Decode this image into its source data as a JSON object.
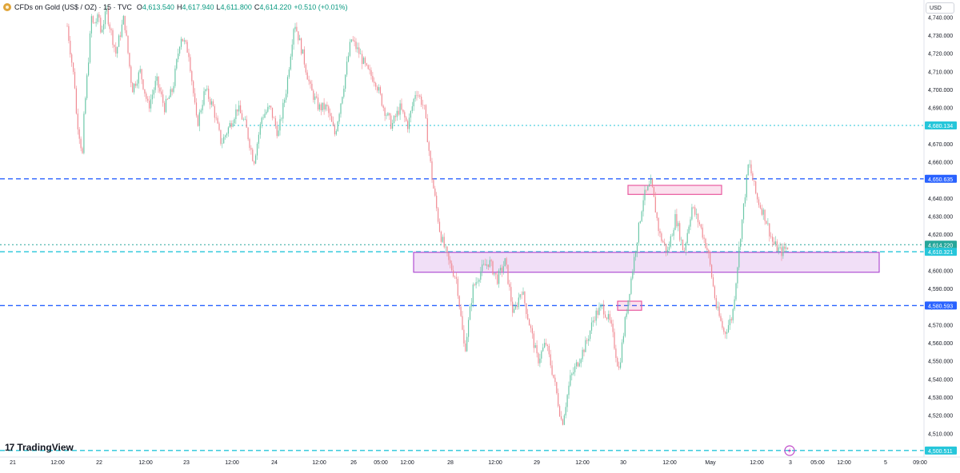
{
  "header": {
    "title": "CFDs on Gold (US$ / OZ) · 15 · TVC",
    "open_label": "O",
    "open": "4,613.540",
    "high_label": "H",
    "high": "4,617.940",
    "low_label": "L",
    "low": "4,611.800",
    "close_label": "C",
    "close": "4,614.220",
    "change": "+0.510 (+0.01%)"
  },
  "currency": "USD",
  "logo": {
    "text": "TradingView",
    "mark": "17"
  },
  "colors": {
    "up": "#089981",
    "down": "#f23645",
    "candle_up": "#6cc7a8",
    "candle_down": "#f08a93",
    "blue_line": "#2962ff",
    "cyan_line": "#26c6da",
    "price_tag": "#26a69a",
    "zone_purple": "#b04fd3",
    "zone_pink": "#e85aa0"
  },
  "chart_data": {
    "type": "candlestick",
    "symbol": "CFDs on Gold (US$ / OZ)",
    "interval": "15",
    "ylim": [
      4500,
      4745
    ],
    "price_ticks": [
      4740,
      4730,
      4720,
      4710,
      4700,
      4690,
      4680,
      4670,
      4660,
      4650,
      4640,
      4630,
      4620,
      4610,
      4600,
      4590,
      4580,
      4570,
      4560,
      4550,
      4540,
      4530,
      4520,
      4510
    ],
    "price_tick_labels": [
      "4,740.000",
      "4,730.000",
      "4,720.000",
      "4,710.000",
      "4,700.000",
      "4,690.000",
      "4,680.000",
      "4,670.000",
      "4,660.000",
      "4,650.000",
      "4,640.000",
      "4,630.000",
      "4,620.000",
      "4,610.000",
      "4,600.000",
      "4,590.000",
      "4,580.000",
      "4,570.000",
      "4,560.000",
      "4,550.000",
      "4,540.000",
      "4,530.000",
      "4,520.000",
      "4,510.000"
    ],
    "time_axis": [
      "21",
      "12:00",
      "22",
      "12:00",
      "23",
      "12:00",
      "24",
      "12:00",
      "26",
      "05:00",
      "12:00",
      "28",
      "12:00",
      "29",
      "12:00",
      "30",
      "12:00",
      "May",
      "12:00",
      "3",
      "05:00",
      "12:00",
      "5",
      "09:00"
    ],
    "price_path": [
      [
        4735,
        4700
      ],
      [
        4690,
        4660
      ],
      [
        4680,
        4740
      ],
      [
        4735,
        4740
      ],
      [
        4730,
        4745
      ],
      [
        4740,
        4720
      ],
      [
        4720,
        4740
      ],
      [
        4740,
        4700
      ],
      [
        4700,
        4710
      ],
      [
        4710,
        4690
      ],
      [
        4690,
        4705
      ],
      [
        4705,
        4690
      ],
      [
        4690,
        4700
      ],
      [
        4700,
        4730
      ],
      [
        4730,
        4720
      ],
      [
        4720,
        4680
      ],
      [
        4680,
        4700
      ],
      [
        4700,
        4690
      ],
      [
        4690,
        4670
      ],
      [
        4670,
        4680
      ],
      [
        4680,
        4690
      ],
      [
        4690,
        4680
      ],
      [
        4680,
        4660
      ],
      [
        4660,
        4685
      ],
      [
        4685,
        4690
      ],
      [
        4690,
        4675
      ],
      [
        4675,
        4700
      ],
      [
        4700,
        4738
      ],
      [
        4738,
        4720
      ],
      [
        4720,
        4700
      ],
      [
        4700,
        4690
      ],
      [
        4690,
        4690
      ],
      [
        4690,
        4675
      ],
      [
        4675,
        4700
      ],
      [
        4700,
        4728
      ],
      [
        4728,
        4720
      ],
      [
        4720,
        4710
      ],
      [
        4710,
        4705
      ],
      [
        4705,
        4690
      ],
      [
        4690,
        4680
      ],
      [
        4680,
        4690
      ],
      [
        4690,
        4680
      ],
      [
        4680,
        4700
      ],
      [
        4700,
        4690
      ],
      [
        4690,
        4650
      ],
      [
        4650,
        4620
      ],
      [
        4620,
        4605
      ],
      [
        4605,
        4595
      ],
      [
        4595,
        4555
      ],
      [
        4555,
        4590
      ],
      [
        4590,
        4600
      ],
      [
        4600,
        4605
      ],
      [
        4605,
        4595
      ],
      [
        4595,
        4605
      ],
      [
        4605,
        4575
      ],
      [
        4575,
        4590
      ],
      [
        4590,
        4570
      ],
      [
        4570,
        4550
      ],
      [
        4550,
        4560
      ],
      [
        4560,
        4540
      ],
      [
        4540,
        4515
      ],
      [
        4515,
        4540
      ],
      [
        4540,
        4550
      ],
      [
        4550,
        4560
      ],
      [
        4560,
        4575
      ],
      [
        4575,
        4580
      ],
      [
        4580,
        4570
      ],
      [
        4570,
        4545
      ],
      [
        4545,
        4580
      ],
      [
        4580,
        4610
      ],
      [
        4610,
        4640
      ],
      [
        4640,
        4648
      ],
      [
        4648,
        4620
      ],
      [
        4620,
        4610
      ],
      [
        4610,
        4630
      ],
      [
        4630,
        4610
      ],
      [
        4610,
        4635
      ],
      [
        4635,
        4625
      ],
      [
        4625,
        4610
      ],
      [
        4610,
        4580
      ],
      [
        4580,
        4565
      ],
      [
        4565,
        4575
      ],
      [
        4575,
        4620
      ],
      [
        4620,
        4660
      ],
      [
        4660,
        4640
      ],
      [
        4640,
        4630
      ],
      [
        4630,
        4615
      ],
      [
        4615,
        4610
      ],
      [
        4610,
        4614
      ]
    ],
    "horizontal_lines": [
      {
        "price": 4680.134,
        "label": "4,680.134",
        "color": "#26c6da",
        "style": "dotted"
      },
      {
        "price": 4650.635,
        "label": "4,650.635",
        "color": "#2962ff",
        "style": "dashed"
      },
      {
        "price": 4614.22,
        "label": "4,614.220",
        "color": "#26a69a",
        "style": "dotted"
      },
      {
        "price": 4610.321,
        "label": "4,610.321",
        "color": "#26c6da",
        "style": "dashed"
      },
      {
        "price": 4580.593,
        "label": "4,580.593",
        "color": "#2962ff",
        "style": "dashed"
      },
      {
        "price": 4500.511,
        "label": "4,500.511",
        "color": "#26c6da",
        "style": "dashed"
      }
    ],
    "zones": [
      {
        "price_top": 4647,
        "price_bottom": 4642,
        "color": "#e85aa0"
      },
      {
        "price_top": 4610,
        "price_bottom": 4599,
        "color": "#b04fd3"
      },
      {
        "price_top": 4583,
        "price_bottom": 4578,
        "color": "#e85aa0"
      }
    ],
    "grid": false
  }
}
